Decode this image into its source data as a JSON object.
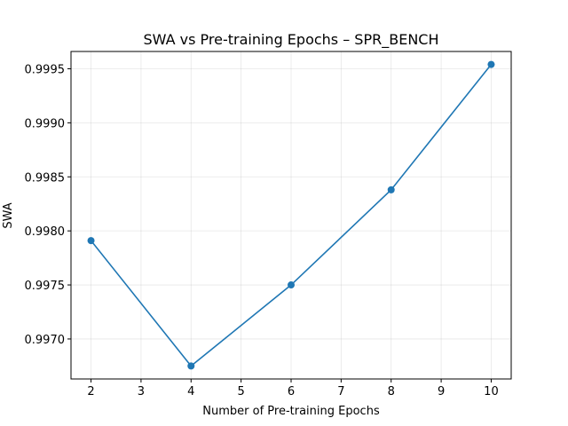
{
  "chart_data": {
    "type": "line",
    "title": "SWA vs Pre-training Epochs – SPR_BENCH",
    "xlabel": "Number of Pre-training Epochs",
    "ylabel": "SWA",
    "x": [
      2,
      4,
      6,
      8,
      10
    ],
    "series": [
      {
        "values": [
          0.99791,
          0.99675,
          0.9975,
          0.99838,
          0.99954
        ],
        "color": "#1f77b4",
        "marker": "circle"
      }
    ],
    "xlim": [
      1.6,
      10.4
    ],
    "ylim": [
      0.99663,
      0.99966
    ],
    "xticks": [
      2,
      3,
      4,
      5,
      6,
      7,
      8,
      9,
      10
    ],
    "xtick_labels": [
      "2",
      "3",
      "4",
      "5",
      "6",
      "7",
      "8",
      "9",
      "10"
    ],
    "yticks": [
      0.997,
      0.9975,
      0.998,
      0.9985,
      0.999,
      0.9995
    ],
    "ytick_labels": [
      "0.9970",
      "0.9975",
      "0.9980",
      "0.9985",
      "0.9990",
      "0.9995"
    ],
    "grid": true,
    "legend": "none"
  }
}
